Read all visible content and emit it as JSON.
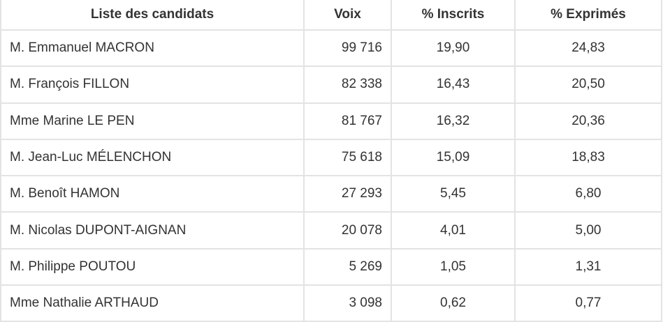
{
  "table": {
    "headers": [
      "Liste des candidats",
      "Voix",
      "% Inscrits",
      "% Exprimés"
    ],
    "rows": [
      {
        "candidat": "M. Emmanuel MACRON",
        "voix": "99 716",
        "inscrits": "19,90",
        "exprimes": "24,83"
      },
      {
        "candidat": "M. François FILLON",
        "voix": "82 338",
        "inscrits": "16,43",
        "exprimes": "20,50"
      },
      {
        "candidat": "Mme Marine LE PEN",
        "voix": "81 767",
        "inscrits": "16,32",
        "exprimes": "20,36"
      },
      {
        "candidat": "M. Jean-Luc MÉLENCHON",
        "voix": "75 618",
        "inscrits": "15,09",
        "exprimes": "18,83"
      },
      {
        "candidat": "M. Benoît HAMON",
        "voix": "27 293",
        "inscrits": "5,45",
        "exprimes": "6,80"
      },
      {
        "candidat": "M. Nicolas DUPONT-AIGNAN",
        "voix": "20 078",
        "inscrits": "4,01",
        "exprimes": "5,00"
      },
      {
        "candidat": "M. Philippe POUTOU",
        "voix": "5 269",
        "inscrits": "1,05",
        "exprimes": "1,31"
      },
      {
        "candidat": "Mme Nathalie ARTHAUD",
        "voix": "3 098",
        "inscrits": "0,62",
        "exprimes": "0,77"
      }
    ]
  }
}
